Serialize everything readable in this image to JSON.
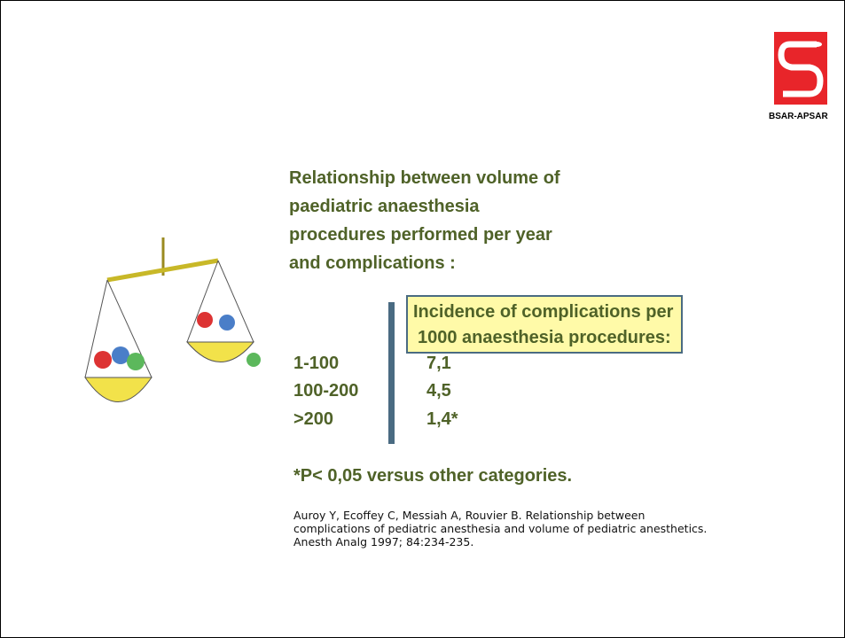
{
  "logo": {
    "label": "BSAR-APSAR"
  },
  "title": {
    "lines": [
      "Relationship between volume of",
      "paediatric anaesthesia",
      "procedures performed per year",
      "and complications :"
    ]
  },
  "table": {
    "header": [
      "Incidence of complications per",
      "1000 anaesthesia procedures:"
    ],
    "rows": [
      [
        "1-100",
        "7,1"
      ],
      [
        "100-200",
        "4,5"
      ],
      [
        ">200",
        "1,4*"
      ]
    ]
  },
  "footnote": "*P< 0,05 versus other categories.",
  "reference": {
    "lines": [
      "Auroy Y, Ecoffey C, Messiah A, Rouvier B. Relationship between",
      "complications of pediatric anesthesia and volume of pediatric anesthetics.",
      "Anesth Analg 1997; 84:234-235."
    ]
  }
}
